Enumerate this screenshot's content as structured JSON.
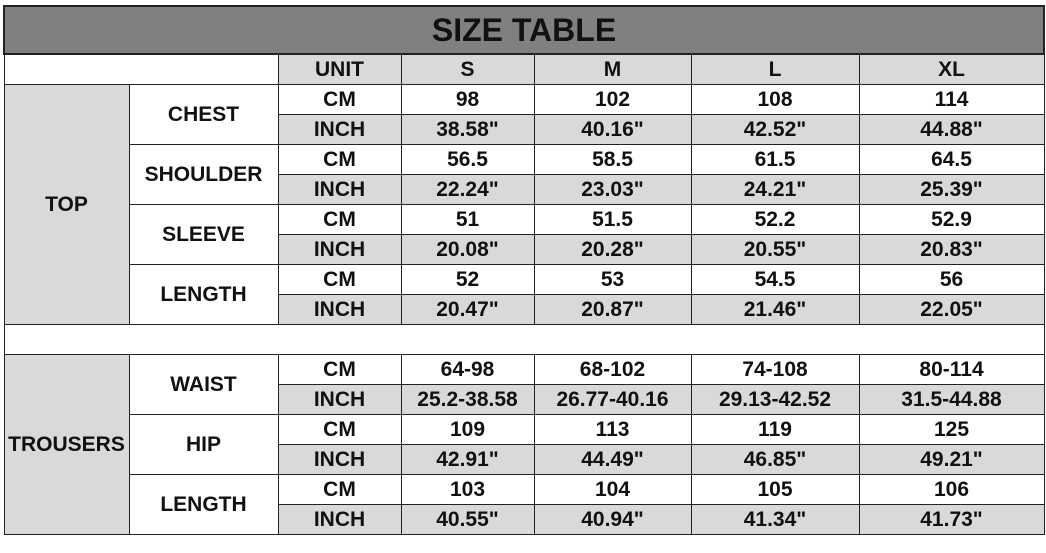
{
  "title": "SIZE TABLE",
  "header": {
    "unit": "UNIT",
    "sizes": [
      "S",
      "M",
      "L",
      "XL"
    ]
  },
  "units": {
    "cm": "CM",
    "inch": "INCH"
  },
  "colors": {
    "title_bg": "#808080",
    "shade": "#d9d9d9",
    "border": "#222222"
  },
  "sections": [
    {
      "name": "TOP",
      "measures": [
        {
          "name": "CHEST",
          "cm": [
            "98",
            "102",
            "108",
            "114"
          ],
          "inch": [
            "38.58\"",
            "40.16\"",
            "42.52\"",
            "44.88\""
          ]
        },
        {
          "name": "SHOULDER",
          "cm": [
            "56.5",
            "58.5",
            "61.5",
            "64.5"
          ],
          "inch": [
            "22.24\"",
            "23.03\"",
            "24.21\"",
            "25.39\""
          ]
        },
        {
          "name": "SLEEVE",
          "cm": [
            "51",
            "51.5",
            "52.2",
            "52.9"
          ],
          "inch": [
            "20.08\"",
            "20.28\"",
            "20.55\"",
            "20.83\""
          ]
        },
        {
          "name": "LENGTH",
          "cm": [
            "52",
            "53",
            "54.5",
            "56"
          ],
          "inch": [
            "20.47\"",
            "20.87\"",
            "21.46\"",
            "22.05\""
          ]
        }
      ]
    },
    {
      "name": "TROUSERS",
      "measures": [
        {
          "name": "WAIST",
          "cm": [
            "64-98",
            "68-102",
            "74-108",
            "80-114"
          ],
          "inch": [
            "25.2-38.58",
            "26.77-40.16",
            "29.13-42.52",
            "31.5-44.88"
          ]
        },
        {
          "name": "HIP",
          "cm": [
            "109",
            "113",
            "119",
            "125"
          ],
          "inch": [
            "42.91\"",
            "44.49\"",
            "46.85\"",
            "49.21\""
          ]
        },
        {
          "name": "LENGTH",
          "cm": [
            "103",
            "104",
            "105",
            "106"
          ],
          "inch": [
            "40.55\"",
            "40.94\"",
            "41.34\"",
            "41.73\""
          ]
        }
      ]
    }
  ]
}
